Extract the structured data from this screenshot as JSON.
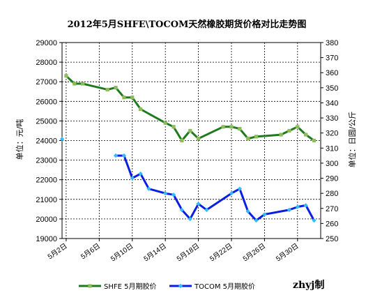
{
  "chart_data": {
    "type": "line",
    "title": "2012年5月SHFE\\TOCOM天然橡胶期货价格对比走势图",
    "ylabel_left": "单位：元/吨",
    "ylabel_right": "单位：日圆/公斤",
    "ylim_left": [
      19000,
      29000
    ],
    "yticks_left": [
      19000,
      20000,
      21000,
      22000,
      23000,
      24000,
      25000,
      26000,
      27000,
      28000,
      29000
    ],
    "ylim_right": [
      250,
      380
    ],
    "yticks_right": [
      250,
      260,
      270,
      280,
      290,
      300,
      310,
      320,
      330,
      340,
      350,
      360,
      370,
      380
    ],
    "xlim": [
      1.5,
      32.8
    ],
    "xticks": [
      {
        "x": 2,
        "label": "5月2日"
      },
      {
        "x": 6,
        "label": "5月6日"
      },
      {
        "x": 10,
        "label": "5月10日"
      },
      {
        "x": 14,
        "label": "5月14日"
      },
      {
        "x": 18,
        "label": "5月18日"
      },
      {
        "x": 22,
        "label": "5月22日"
      },
      {
        "x": 26,
        "label": "5月26日"
      },
      {
        "x": 30,
        "label": "5月30日"
      }
    ],
    "grid": true,
    "legend_position": "bottom",
    "watermark": "zhyj制",
    "series": [
      {
        "name": "SHFE 5月期胶价",
        "axis": "left",
        "color": "#1e7a1e",
        "marker_color": "#8fbc5a",
        "x": [
          2,
          3,
          4,
          7,
          8,
          9,
          10,
          11,
          14,
          15,
          16,
          17,
          18,
          21,
          22,
          23,
          24,
          25,
          28,
          29,
          30,
          31,
          32
        ],
        "y": [
          27300,
          26900,
          26900,
          26600,
          26700,
          26200,
          26200,
          25600,
          24900,
          24700,
          24000,
          24500,
          24100,
          24700,
          24700,
          24600,
          24100,
          24200,
          24300,
          24500,
          24700,
          24300,
          24000
        ]
      },
      {
        "name": "TOCOM 5月期胶价",
        "axis": "right",
        "color": "#0a1ee0",
        "marker_color": "#33bbff",
        "x": [
          1.5,
          8,
          9,
          10,
          11,
          12,
          14,
          15,
          16,
          17,
          18,
          19,
          22,
          23,
          24,
          25,
          26,
          29,
          30,
          31,
          32
        ],
        "y": [
          316,
          305,
          305,
          290,
          293,
          283,
          280,
          279,
          269,
          263,
          273,
          269,
          280,
          283,
          268,
          262,
          266,
          269,
          271,
          272,
          262
        ]
      }
    ]
  }
}
